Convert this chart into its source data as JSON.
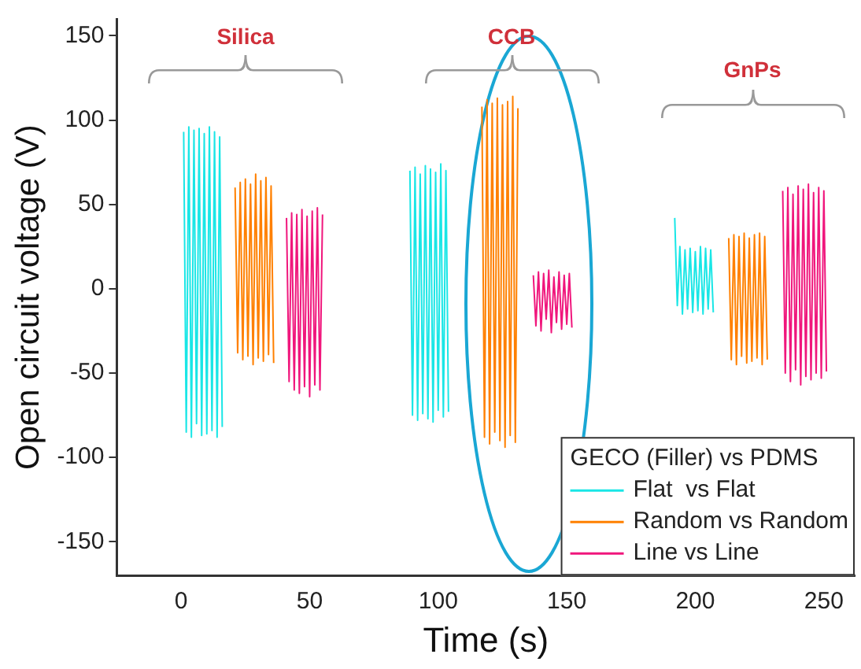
{
  "chart_data": {
    "type": "line",
    "xlabel": "Time (s)",
    "ylabel": "Open circuit voltage (V)",
    "legend_title": "GECO (Filler) vs PDMS",
    "legend": "bottom right",
    "grid": false,
    "marker": "none",
    "line_style": "solid",
    "xlim": [
      -25,
      262
    ],
    "xticks": [
      0,
      50,
      100,
      150,
      200,
      250
    ],
    "ylim": [
      -170,
      160
    ],
    "yticks": [
      -150,
      -100,
      -50,
      0,
      50,
      100,
      150
    ],
    "series": [
      {
        "name": "Flat  vs Flat",
        "color": "#19e6e6",
        "x": [
          1,
          2,
          3,
          4,
          5,
          6,
          7,
          8,
          9,
          10,
          11,
          12,
          13,
          14,
          15,
          16,
          50,
          89,
          90,
          91,
          92,
          93,
          94,
          95,
          96,
          97,
          98,
          99,
          100,
          101,
          102,
          103,
          104,
          150,
          192,
          193,
          194,
          195,
          196,
          197,
          198,
          199,
          200,
          201,
          202,
          203,
          204,
          205,
          206,
          207
        ],
        "values": [
          93,
          -85,
          96,
          -88,
          94,
          -80,
          95,
          -87,
          92,
          -86,
          96,
          -84,
          93,
          -88,
          90,
          -82,
          null,
          70,
          -75,
          72,
          -78,
          68,
          -74,
          73,
          -77,
          71,
          -79,
          69,
          -72,
          74,
          -76,
          70,
          -73,
          null,
          42,
          -10,
          25,
          -15,
          23,
          -12,
          24,
          -14,
          22,
          -13,
          25,
          -15,
          24,
          -12,
          23,
          -14
        ]
      },
      {
        "name": "Random vs Random",
        "color": "#ff8000",
        "x": [
          21,
          22,
          23,
          24,
          25,
          26,
          27,
          28,
          29,
          30,
          31,
          32,
          33,
          34,
          35,
          36,
          80,
          117,
          118,
          119,
          120,
          121,
          122,
          123,
          124,
          125,
          126,
          127,
          128,
          129,
          130,
          131,
          170,
          213,
          214,
          215,
          216,
          217,
          218,
          219,
          220,
          221,
          222,
          223,
          224,
          225,
          226,
          227,
          228
        ],
        "values": [
          60,
          -38,
          63,
          -42,
          65,
          -40,
          62,
          -45,
          68,
          -41,
          64,
          -43,
          66,
          -39,
          61,
          -44,
          null,
          108,
          -88,
          112,
          -92,
          110,
          -85,
          113,
          -90,
          109,
          -94,
          111,
          -87,
          114,
          -91,
          107,
          null,
          30,
          -42,
          32,
          -45,
          31,
          -40,
          33,
          -44,
          30,
          -43,
          32,
          -41,
          33,
          -45,
          31,
          -42
        ]
      },
      {
        "name": "Line vs Line",
        "color": "#f0167c",
        "x": [
          41,
          42,
          43,
          44,
          45,
          46,
          47,
          48,
          49,
          50,
          51,
          52,
          53,
          54,
          55,
          100,
          137,
          138,
          139,
          140,
          141,
          142,
          143,
          144,
          145,
          146,
          147,
          148,
          149,
          150,
          151,
          152,
          190,
          234,
          235,
          236,
          237,
          238,
          239,
          240,
          241,
          242,
          243,
          244,
          245,
          246,
          247,
          248,
          249,
          250,
          251
        ],
        "values": [
          42,
          -55,
          45,
          -60,
          44,
          -62,
          47,
          -58,
          43,
          -64,
          46,
          -57,
          48,
          -60,
          44,
          null,
          8,
          -22,
          10,
          -25,
          9,
          -18,
          11,
          -26,
          7,
          -20,
          10,
          -24,
          8,
          -21,
          9,
          -23,
          null,
          58,
          -50,
          60,
          -55,
          56,
          -48,
          61,
          -57,
          59,
          -52,
          62,
          -54,
          57,
          -50,
          60,
          -53,
          58,
          -49
        ]
      }
    ],
    "annotations": [
      "Silica",
      "CCB",
      "GnPs"
    ]
  }
}
